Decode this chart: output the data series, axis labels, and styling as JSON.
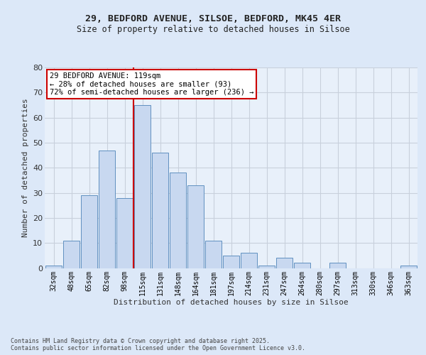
{
  "title1": "29, BEDFORD AVENUE, SILSOE, BEDFORD, MK45 4ER",
  "title2": "Size of property relative to detached houses in Silsoe",
  "xlabel": "Distribution of detached houses by size in Silsoe",
  "ylabel": "Number of detached properties",
  "categories": [
    "32sqm",
    "48sqm",
    "65sqm",
    "82sqm",
    "98sqm",
    "115sqm",
    "131sqm",
    "148sqm",
    "164sqm",
    "181sqm",
    "197sqm",
    "214sqm",
    "231sqm",
    "247sqm",
    "264sqm",
    "280sqm",
    "297sqm",
    "313sqm",
    "330sqm",
    "346sqm",
    "363sqm"
  ],
  "values": [
    1,
    11,
    29,
    47,
    28,
    65,
    46,
    38,
    33,
    11,
    5,
    6,
    1,
    4,
    2,
    0,
    2,
    0,
    0,
    0,
    1
  ],
  "bar_color": "#c8d8f0",
  "bar_edge_color": "#6090c0",
  "vline_x": 4.5,
  "vline_color": "#cc0000",
  "annotation_text": "29 BEDFORD AVENUE: 119sqm\n← 28% of detached houses are smaller (93)\n72% of semi-detached houses are larger (236) →",
  "ylim": [
    0,
    80
  ],
  "yticks": [
    0,
    10,
    20,
    30,
    40,
    50,
    60,
    70,
    80
  ],
  "fig_bg_color": "#dce8f8",
  "plot_bg_color": "#e8f0fa",
  "grid_color": "#c8d0dc",
  "footer": "Contains HM Land Registry data © Crown copyright and database right 2025.\nContains public sector information licensed under the Open Government Licence v3.0."
}
